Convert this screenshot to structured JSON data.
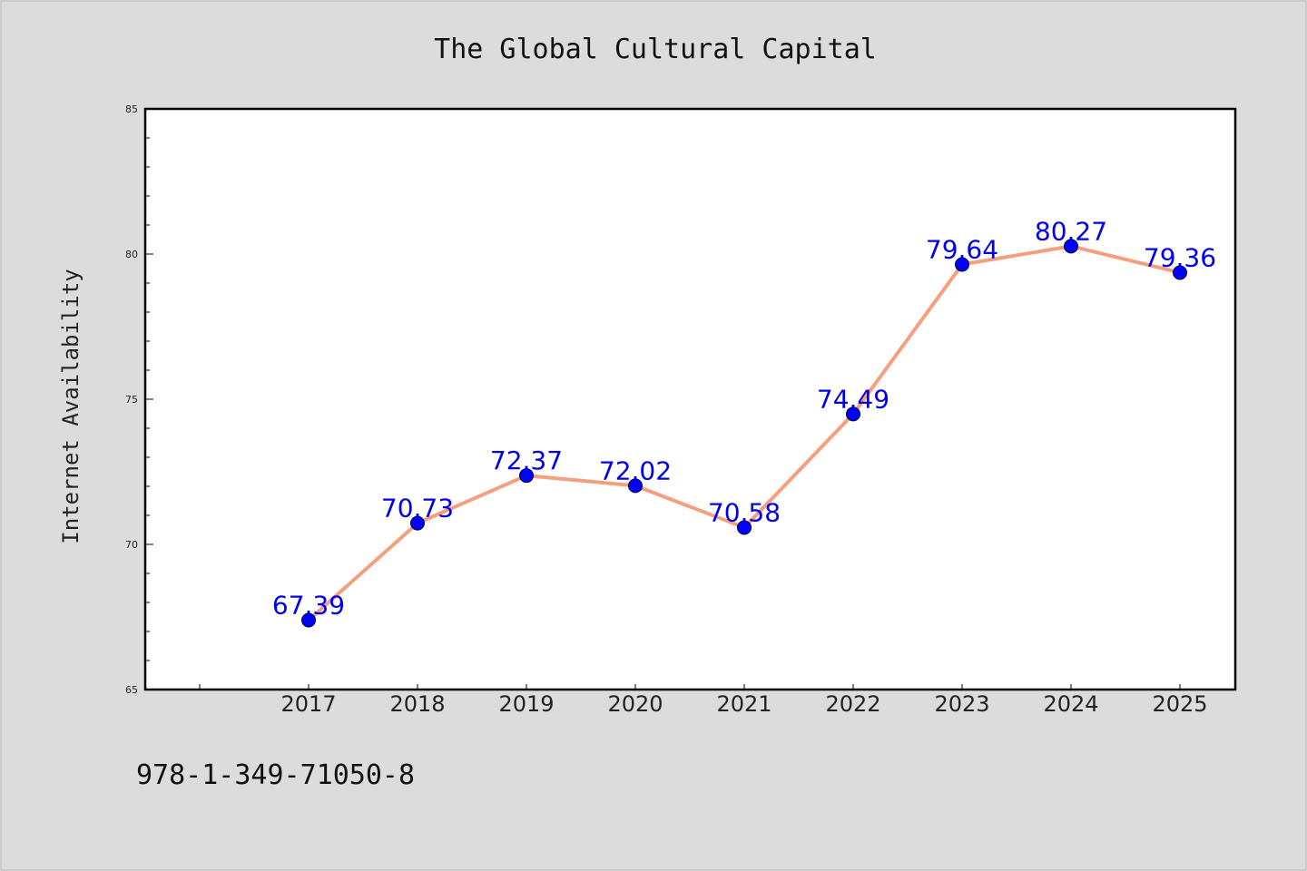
{
  "chart_data": {
    "type": "line",
    "title": "The Global Cultural Capital",
    "ylabel": "Internet Availability",
    "xlabel": "",
    "categories": [
      "2017",
      "2018",
      "2019",
      "2020",
      "2021",
      "2022",
      "2023",
      "2024",
      "2025"
    ],
    "series": [
      {
        "values": [
          67.39,
          70.73,
          72.37,
          72.02,
          70.58,
          74.49,
          79.64,
          80.27,
          79.36
        ]
      }
    ],
    "data_labels": [
      "67.39",
      "70.73",
      "72.37",
      "72.02",
      "70.58",
      "74.49",
      "79.64",
      "80.27",
      "79.36"
    ],
    "ylim": [
      65,
      85
    ],
    "yticks": [
      "65",
      "70",
      "75",
      "80",
      "85"
    ],
    "grid": false,
    "legend": "none",
    "colors": {
      "line": "#f4a07e",
      "marker": "#0000ff",
      "label": "#0000ee"
    }
  },
  "footer": {
    "isbn": "978-1-349-71050-8"
  }
}
